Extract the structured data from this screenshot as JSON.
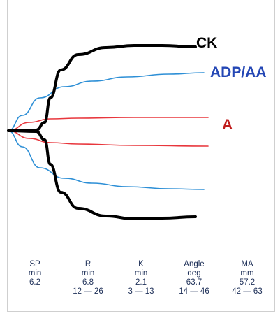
{
  "chart_data": {
    "type": "line",
    "series": [
      {
        "name": "CK",
        "color": "#000000",
        "upper": [
          [
            0,
            187
          ],
          [
            40,
            186
          ],
          [
            52,
            175
          ],
          [
            60,
            140
          ],
          [
            75,
            100
          ],
          [
            100,
            78
          ],
          [
            140,
            68
          ],
          [
            180,
            65
          ],
          [
            220,
            65
          ],
          [
            268,
            67
          ]
        ],
        "lower": [
          [
            0,
            187
          ],
          [
            40,
            188
          ],
          [
            52,
            200
          ],
          [
            60,
            235
          ],
          [
            75,
            275
          ],
          [
            100,
            298
          ],
          [
            140,
            309
          ],
          [
            180,
            313
          ],
          [
            220,
            312
          ],
          [
            268,
            310
          ]
        ]
      },
      {
        "name": "ADP/AA",
        "color": "#2d8fd6",
        "upper": [
          [
            0,
            187
          ],
          [
            20,
            165
          ],
          [
            45,
            140
          ],
          [
            80,
            124
          ],
          [
            120,
            116
          ],
          [
            170,
            110
          ],
          [
            230,
            106
          ],
          [
            280,
            104
          ]
        ],
        "lower": [
          [
            0,
            187
          ],
          [
            20,
            210
          ],
          [
            45,
            240
          ],
          [
            80,
            255
          ],
          [
            120,
            262
          ],
          [
            170,
            267
          ],
          [
            230,
            270
          ],
          [
            280,
            271
          ]
        ]
      },
      {
        "name": "A",
        "color": "#e8363c",
        "upper": [
          [
            0,
            187
          ],
          [
            30,
            175
          ],
          [
            60,
            170
          ],
          [
            100,
            169
          ],
          [
            180,
            168
          ],
          [
            286,
            168
          ]
        ],
        "lower": [
          [
            0,
            187
          ],
          [
            30,
            198
          ],
          [
            60,
            204
          ],
          [
            100,
            206
          ],
          [
            180,
            208
          ],
          [
            286,
            209
          ]
        ]
      }
    ],
    "parameters": [
      {
        "name": "SP",
        "unit": "min",
        "value": "6.2",
        "range": ""
      },
      {
        "name": "R",
        "unit": "min",
        "value": "6.8",
        "range": "12 — 26"
      },
      {
        "name": "K",
        "unit": "min",
        "value": "2.1",
        "range": "3 — 13"
      },
      {
        "name": "Angle",
        "unit": "deg",
        "value": "63.7",
        "range": "14 — 46"
      },
      {
        "name": "MA",
        "unit": "mm",
        "value": "57.2",
        "range": "42 — 63"
      }
    ]
  }
}
